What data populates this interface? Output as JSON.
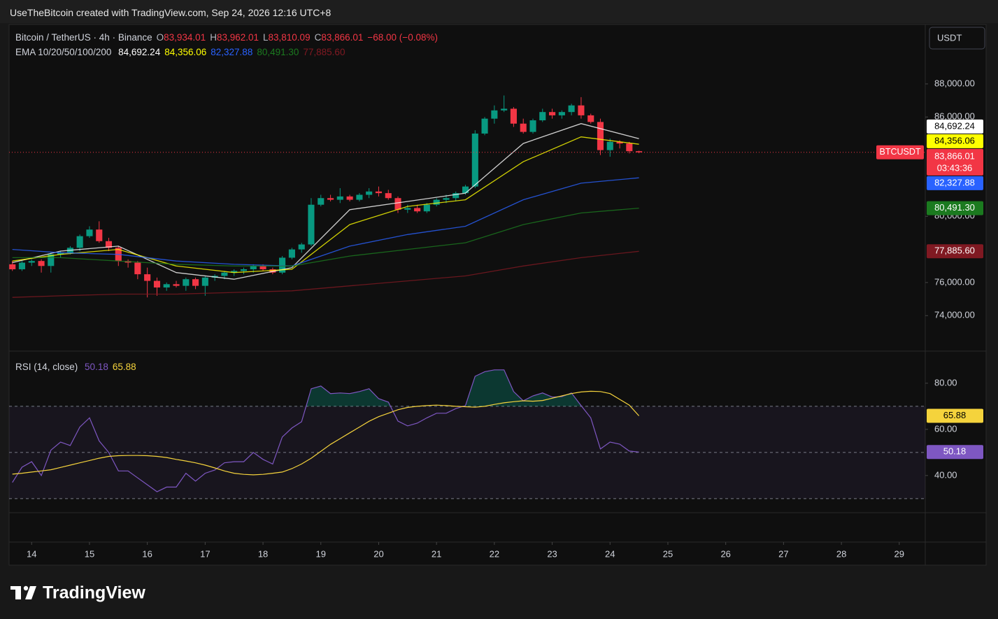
{
  "header": {
    "text": "UseTheBitcoin created with TradingView.com, Sep 24, 2026 12:16 UTC+8"
  },
  "currency": "USDT",
  "watermark": "TradingView",
  "chart_data": {
    "type": "candlestick",
    "title": "Bitcoin / TetherUS · 4h · Binance",
    "ohlc_labels": [
      [
        "O",
        "83,934.01"
      ],
      [
        "H",
        "83,962.01"
      ],
      [
        "L",
        "83,810.09"
      ],
      [
        "C",
        "83,866.01"
      ]
    ],
    "change": "−68.00 (−0.08%)",
    "up_color": "#089981",
    "down_color": "#f23645",
    "xlim": [
      13.61,
      29.45
    ],
    "xticks": [
      14,
      15,
      16,
      17,
      18,
      19,
      20,
      21,
      22,
      23,
      24,
      25,
      26,
      27,
      28,
      29
    ],
    "ylim": [
      71940,
      91590
    ],
    "yticks": [
      {
        "value": 74000,
        "label": "74,000.00"
      },
      {
        "value": 76000,
        "label": "76,000.00"
      },
      {
        "value": 80000,
        "label": "80,000.00"
      },
      {
        "value": 86000,
        "label": "86,000.00"
      },
      {
        "value": 88000,
        "label": "88,000.00"
      }
    ],
    "x": [
      13.667,
      13.833,
      14,
      14.167,
      14.333,
      14.5,
      14.667,
      14.833,
      15,
      15.167,
      15.333,
      15.5,
      15.667,
      15.833,
      16,
      16.167,
      16.333,
      16.5,
      16.667,
      16.833,
      17,
      17.167,
      17.333,
      17.5,
      17.667,
      17.833,
      18,
      18.167,
      18.333,
      18.5,
      18.667,
      18.833,
      19,
      19.167,
      19.333,
      19.5,
      19.667,
      19.833,
      20,
      20.167,
      20.333,
      20.5,
      20.667,
      20.833,
      21,
      21.167,
      21.333,
      21.5,
      21.667,
      21.833,
      22,
      22.167,
      22.333,
      22.5,
      22.667,
      22.833,
      23,
      23.167,
      23.333,
      23.5,
      23.667,
      23.833,
      24,
      24.167,
      24.333,
      24.5
    ],
    "open": [
      77100,
      76800,
      77200,
      77300,
      77000,
      77700,
      77800,
      78100,
      78800,
      79200,
      78500,
      78100,
      77300,
      77200,
      76500,
      76100,
      75700,
      75900,
      75800,
      76200,
      75800,
      76300,
      76400,
      76600,
      76700,
      76800,
      77000,
      76800,
      76600,
      77500,
      78000,
      78300,
      80700,
      81100,
      81000,
      81200,
      81000,
      81300,
      81500,
      81400,
      81100,
      80400,
      80500,
      80300,
      80700,
      81000,
      81100,
      81400,
      81800,
      85000,
      85900,
      86400,
      86500,
      85600,
      85100,
      85800,
      86300,
      86100,
      86300,
      86700,
      86100,
      85700,
      84000,
      84500,
      84400,
      83934.01
    ],
    "high": [
      77300,
      77300,
      77400,
      77400,
      77800,
      77900,
      78200,
      78900,
      79400,
      79700,
      78700,
      78200,
      77400,
      77300,
      76900,
      76300,
      76000,
      76100,
      76300,
      76300,
      76400,
      76500,
      76700,
      76800,
      76900,
      77100,
      77100,
      76900,
      77600,
      78100,
      78400,
      81100,
      81300,
      81300,
      81700,
      81300,
      81400,
      81700,
      81800,
      81600,
      81200,
      80700,
      80700,
      80800,
      81100,
      81300,
      81500,
      81900,
      85200,
      86000,
      86700,
      87300,
      86600,
      85900,
      85900,
      86500,
      86500,
      86400,
      86800,
      87200,
      86200,
      85900,
      84700,
      84600,
      84500,
      83962.01
    ],
    "low": [
      76700,
      76700,
      77000,
      76600,
      76600,
      77500,
      77700,
      77900,
      78700,
      78400,
      77900,
      77000,
      76900,
      76200,
      75100,
      75200,
      75500,
      75700,
      75500,
      75600,
      75200,
      76100,
      76200,
      76400,
      76500,
      76600,
      76700,
      76500,
      76500,
      77400,
      77800,
      78200,
      80600,
      80900,
      80800,
      80900,
      80900,
      81100,
      81200,
      81000,
      80200,
      80200,
      80200,
      80200,
      80600,
      80800,
      80900,
      81300,
      81700,
      84900,
      85600,
      86300,
      85400,
      85000,
      85000,
      85700,
      85900,
      85900,
      86100,
      85900,
      85600,
      83700,
      83600,
      84100,
      83800,
      83810.09
    ],
    "close": [
      76800,
      77200,
      77300,
      77000,
      77700,
      77800,
      78100,
      78800,
      79200,
      78500,
      78100,
      77300,
      77200,
      76500,
      76100,
      75700,
      75900,
      75800,
      76200,
      75800,
      76300,
      76400,
      76600,
      76700,
      76800,
      77000,
      76800,
      76600,
      77500,
      78000,
      78300,
      80700,
      81100,
      81000,
      81200,
      81000,
      81300,
      81500,
      81400,
      81100,
      80400,
      80500,
      80300,
      80700,
      81000,
      81100,
      81400,
      81800,
      85000,
      85900,
      86400,
      86500,
      85600,
      85100,
      85800,
      86300,
      86100,
      86300,
      86700,
      86100,
      85700,
      84000,
      84500,
      84400,
      83934.01,
      83866.01
    ],
    "price_tag": {
      "symbol": "BTCUSDT",
      "label": "83,866.01",
      "countdown": "03:43:36"
    },
    "overlays": {
      "title": "EMA 10/20/50/100/200",
      "x": [
        13.667,
        14.5,
        15.5,
        16.5,
        17.5,
        18.5,
        19.5,
        20.5,
        21.5,
        22.5,
        23.5,
        24.5
      ],
      "series": [
        {
          "color": "#ffffff",
          "values": [
            77200,
            77900,
            78200,
            76600,
            76200,
            76900,
            80400,
            80900,
            81400,
            84400,
            85600,
            84692.24
          ],
          "last_label": "84,692.24"
        },
        {
          "color": "#ffff00",
          "values": [
            77300,
            77700,
            78000,
            77000,
            76600,
            76800,
            79500,
            80600,
            81000,
            83300,
            84800,
            84356.06
          ],
          "last_label": "84,356.06"
        },
        {
          "color": "#2962ff",
          "values": [
            78000,
            77800,
            77700,
            77300,
            77100,
            77000,
            78200,
            78900,
            79400,
            81000,
            82000,
            82327.88
          ],
          "last_label": "82,327.88"
        },
        {
          "color": "#1b7a1f",
          "values": [
            77500,
            77500,
            77300,
            77100,
            77000,
            77000,
            77600,
            78000,
            78400,
            79500,
            80200,
            80491.3
          ],
          "last_label": "80,491.30"
        },
        {
          "color": "#801922",
          "values": [
            75100,
            75200,
            75300,
            75300,
            75400,
            75500,
            75800,
            76100,
            76400,
            77000,
            77500,
            77885.6
          ],
          "last_label": "77,885.60"
        }
      ]
    },
    "rsi": {
      "type": "line",
      "title": "RSI (14, close)",
      "ylim": [
        24.2,
        93
      ],
      "yticks": [
        {
          "value": 40,
          "label": "40.00"
        },
        {
          "value": 60,
          "label": "60.00"
        },
        {
          "value": 80,
          "label": "80.00"
        }
      ],
      "bands": [
        70,
        50,
        30
      ],
      "band_color": "#7e57c2",
      "series": [
        {
          "color": "#7e57c2",
          "values": [
            37,
            43.6,
            46,
            40,
            51,
            54.5,
            53,
            61,
            65,
            55,
            50,
            42,
            42,
            39,
            36,
            33,
            35,
            35,
            41,
            37.6,
            41,
            42.4,
            45.5,
            46,
            46,
            50,
            47,
            45,
            56.7,
            60.6,
            63.3,
            77.6,
            78.8,
            75.5,
            75.8,
            75.5,
            76.4,
            77.6,
            73.3,
            71.8,
            63.6,
            61.5,
            62.7,
            65,
            67,
            67,
            69,
            70.3,
            83,
            85,
            85.8,
            85.8,
            76.4,
            72.4,
            74.5,
            75.8,
            74,
            74.2,
            75.8,
            70.3,
            65,
            51.5,
            54.5,
            53.6,
            50.6,
            50.18
          ]
        },
        {
          "color": "#f5d33c",
          "values": [
            40.6,
            41,
            41.5,
            42,
            42.5,
            43.5,
            44.5,
            45.5,
            46.5,
            47.5,
            48.3,
            48.6,
            48.7,
            48.7,
            48.6,
            48.3,
            47.8,
            47,
            46.3,
            45.5,
            44.5,
            43.3,
            42,
            41,
            40.5,
            40.3,
            40.5,
            41,
            41.5,
            43,
            45,
            47.5,
            50.5,
            53.5,
            56,
            58.5,
            61,
            63.5,
            65.5,
            67,
            68.5,
            69.5,
            70,
            70.3,
            70.5,
            70.3,
            70,
            69.8,
            69.6,
            70,
            70.8,
            71.5,
            72,
            72.4,
            72.2,
            72.5,
            73.5,
            74.5,
            75.5,
            76.2,
            76.5,
            76.4,
            75.5,
            73,
            70.5,
            65.88
          ]
        }
      ]
    }
  }
}
